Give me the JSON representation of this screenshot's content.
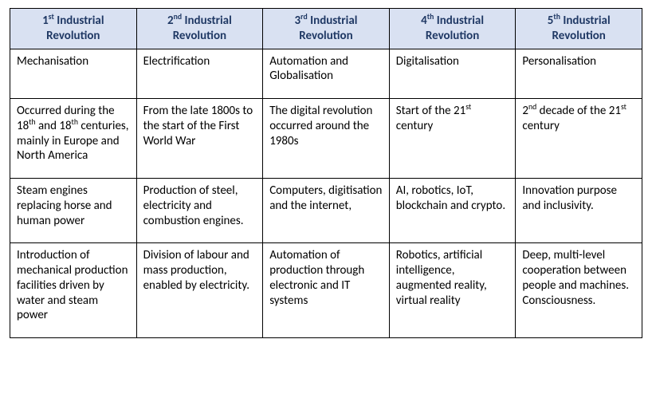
{
  "table": {
    "type": "table",
    "columns": 5,
    "header_bg": "#d9e1f2",
    "header_text_color": "#1f3864",
    "border_color": "#000000",
    "cell_bg": "#ffffff",
    "body_text_color": "#000000",
    "font_family": "Calibri",
    "header_font_weight": 700,
    "body_font_weight": 400,
    "font_size_pt": 11,
    "headers": [
      {
        "prefix": "1",
        "suffix": "st",
        "line2": "Revolution",
        "word": "Industrial"
      },
      {
        "prefix": "2",
        "suffix": "nd",
        "line2": "Revolution",
        "word": "Industrial"
      },
      {
        "prefix": "3",
        "suffix": "rd",
        "line2": "Revolution",
        "word": "Industrial"
      },
      {
        "prefix": "4",
        "suffix": "th",
        "line2": "Revolution",
        "word": "Industrial"
      },
      {
        "prefix": "5",
        "suffix": "th",
        "line2": "Revolution",
        "word": "Industrial"
      }
    ],
    "rows": [
      [
        {
          "text": "Mechanisation"
        },
        {
          "text": "Electrification"
        },
        {
          "text": "Automation and Globalisation"
        },
        {
          "text": "Digitalisation"
        },
        {
          "text": "Personalisation"
        }
      ],
      [
        {
          "beforeSup1": "Occurred during the 18",
          "sup1": "th",
          "betweenSup": " and 18",
          "sup2": "th",
          "afterSup": " centuries, mainly in Europe and North America"
        },
        {
          "text": "From the late 1800s to the start of the First World War"
        },
        {
          "text": "The digital revolution occurred around the 1980s"
        },
        {
          "beforeSup1": "Start of the 21",
          "sup1": "st",
          "afterSup": " century"
        },
        {
          "beforeSup1": " 2",
          "sup1": "nd",
          "betweenSup": " decade of the 21",
          "sup2": "st",
          "afterSup": " century"
        }
      ],
      [
        {
          "text": "Steam engines replacing horse and human power"
        },
        {
          "text": "Production of steel, electricity and combustion engines."
        },
        {
          "text": "Computers, digitisation and the internet,"
        },
        {
          "text": "AI, robotics, IoT, blockchain and crypto."
        },
        {
          "text": "Innovation purpose and inclusivity."
        }
      ],
      [
        {
          "text": "Introduction of mechanical production facilities driven by water and steam power"
        },
        {
          "text": "Division of labour and mass production, enabled by electricity."
        },
        {
          "text": "Automation of production through electronic and IT systems"
        },
        {
          "text": "Robotics, artificial intelligence, augmented reality, virtual reality"
        },
        {
          "text": "Deep, multi-level cooperation between people and machines. Consciousness."
        }
      ]
    ]
  }
}
